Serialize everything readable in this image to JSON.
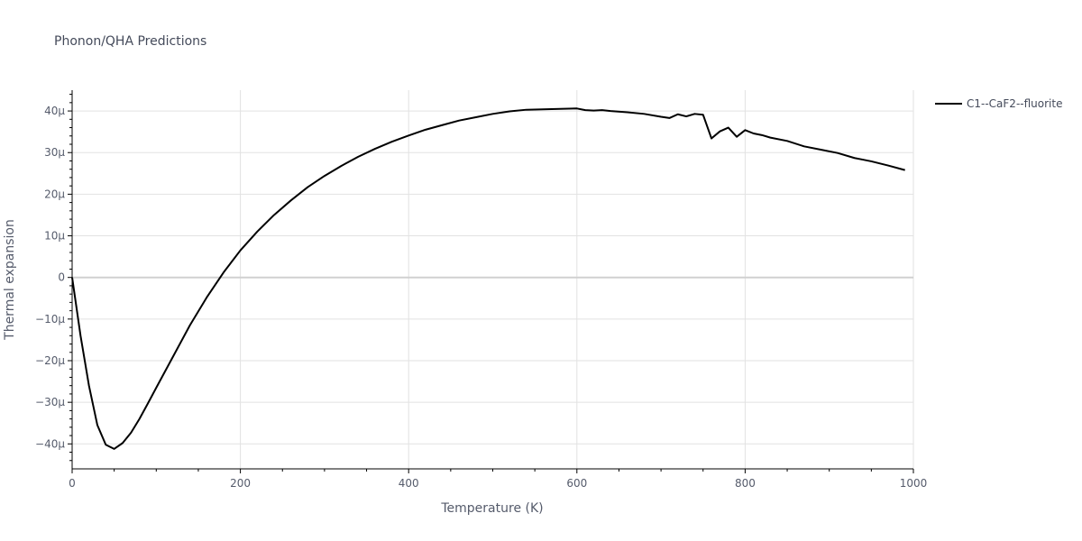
{
  "chart_data": {
    "type": "line",
    "title": "Phonon/QHA Predictions",
    "xlabel": "Temperature (K)",
    "ylabel": "Thermal expansion",
    "xlim": [
      0,
      1000
    ],
    "ylim": [
      -46,
      45
    ],
    "x_ticks": [
      {
        "value": 0,
        "label": "0"
      },
      {
        "value": 200,
        "label": "200"
      },
      {
        "value": 400,
        "label": "400"
      },
      {
        "value": 600,
        "label": "600"
      },
      {
        "value": 800,
        "label": "800"
      },
      {
        "value": 1000,
        "label": "1000"
      }
    ],
    "y_ticks": [
      {
        "value": 40,
        "label": "40μ"
      },
      {
        "value": 30,
        "label": "30μ"
      },
      {
        "value": 20,
        "label": "20μ"
      },
      {
        "value": 10,
        "label": "10μ"
      },
      {
        "value": 0,
        "label": "0"
      },
      {
        "value": -10,
        "label": "−10μ"
      },
      {
        "value": -20,
        "label": "−20μ"
      },
      {
        "value": -30,
        "label": "−30μ"
      },
      {
        "value": -40,
        "label": "−40μ"
      }
    ],
    "grid": true,
    "legend": "top-right",
    "series": [
      {
        "name": "C1--CaF2--fluorite",
        "color": "#000000",
        "x": [
          0,
          10,
          20,
          30,
          40,
          50,
          60,
          70,
          80,
          90,
          100,
          120,
          140,
          160,
          180,
          200,
          220,
          240,
          260,
          280,
          300,
          320,
          340,
          360,
          380,
          400,
          420,
          440,
          460,
          480,
          500,
          520,
          540,
          560,
          580,
          600,
          610,
          620,
          630,
          640,
          660,
          680,
          700,
          710,
          720,
          730,
          740,
          750,
          760,
          770,
          780,
          790,
          800,
          810,
          820,
          830,
          850,
          870,
          890,
          910,
          930,
          940,
          950,
          970,
          990
        ],
        "y": [
          0,
          -14,
          -26,
          -35.5,
          -40.2,
          -41.2,
          -39.8,
          -37.3,
          -34,
          -30.3,
          -26.5,
          -19,
          -11.5,
          -4.8,
          1.2,
          6.5,
          11,
          15,
          18.5,
          21.7,
          24.4,
          26.8,
          29,
          30.9,
          32.6,
          34.1,
          35.5,
          36.6,
          37.7,
          38.5,
          39.3,
          39.9,
          40.3,
          40.4,
          40.5,
          40.6,
          40.2,
          40.1,
          40.2,
          40,
          39.7,
          39.3,
          38.6,
          38.3,
          39.2,
          38.7,
          39.3,
          39.1,
          33.4,
          35.1,
          36,
          33.8,
          35.4,
          34.6,
          34.2,
          33.6,
          32.8,
          31.5,
          30.7,
          29.9,
          28.7,
          28.3,
          27.9,
          26.9,
          25.8
        ]
      }
    ]
  }
}
